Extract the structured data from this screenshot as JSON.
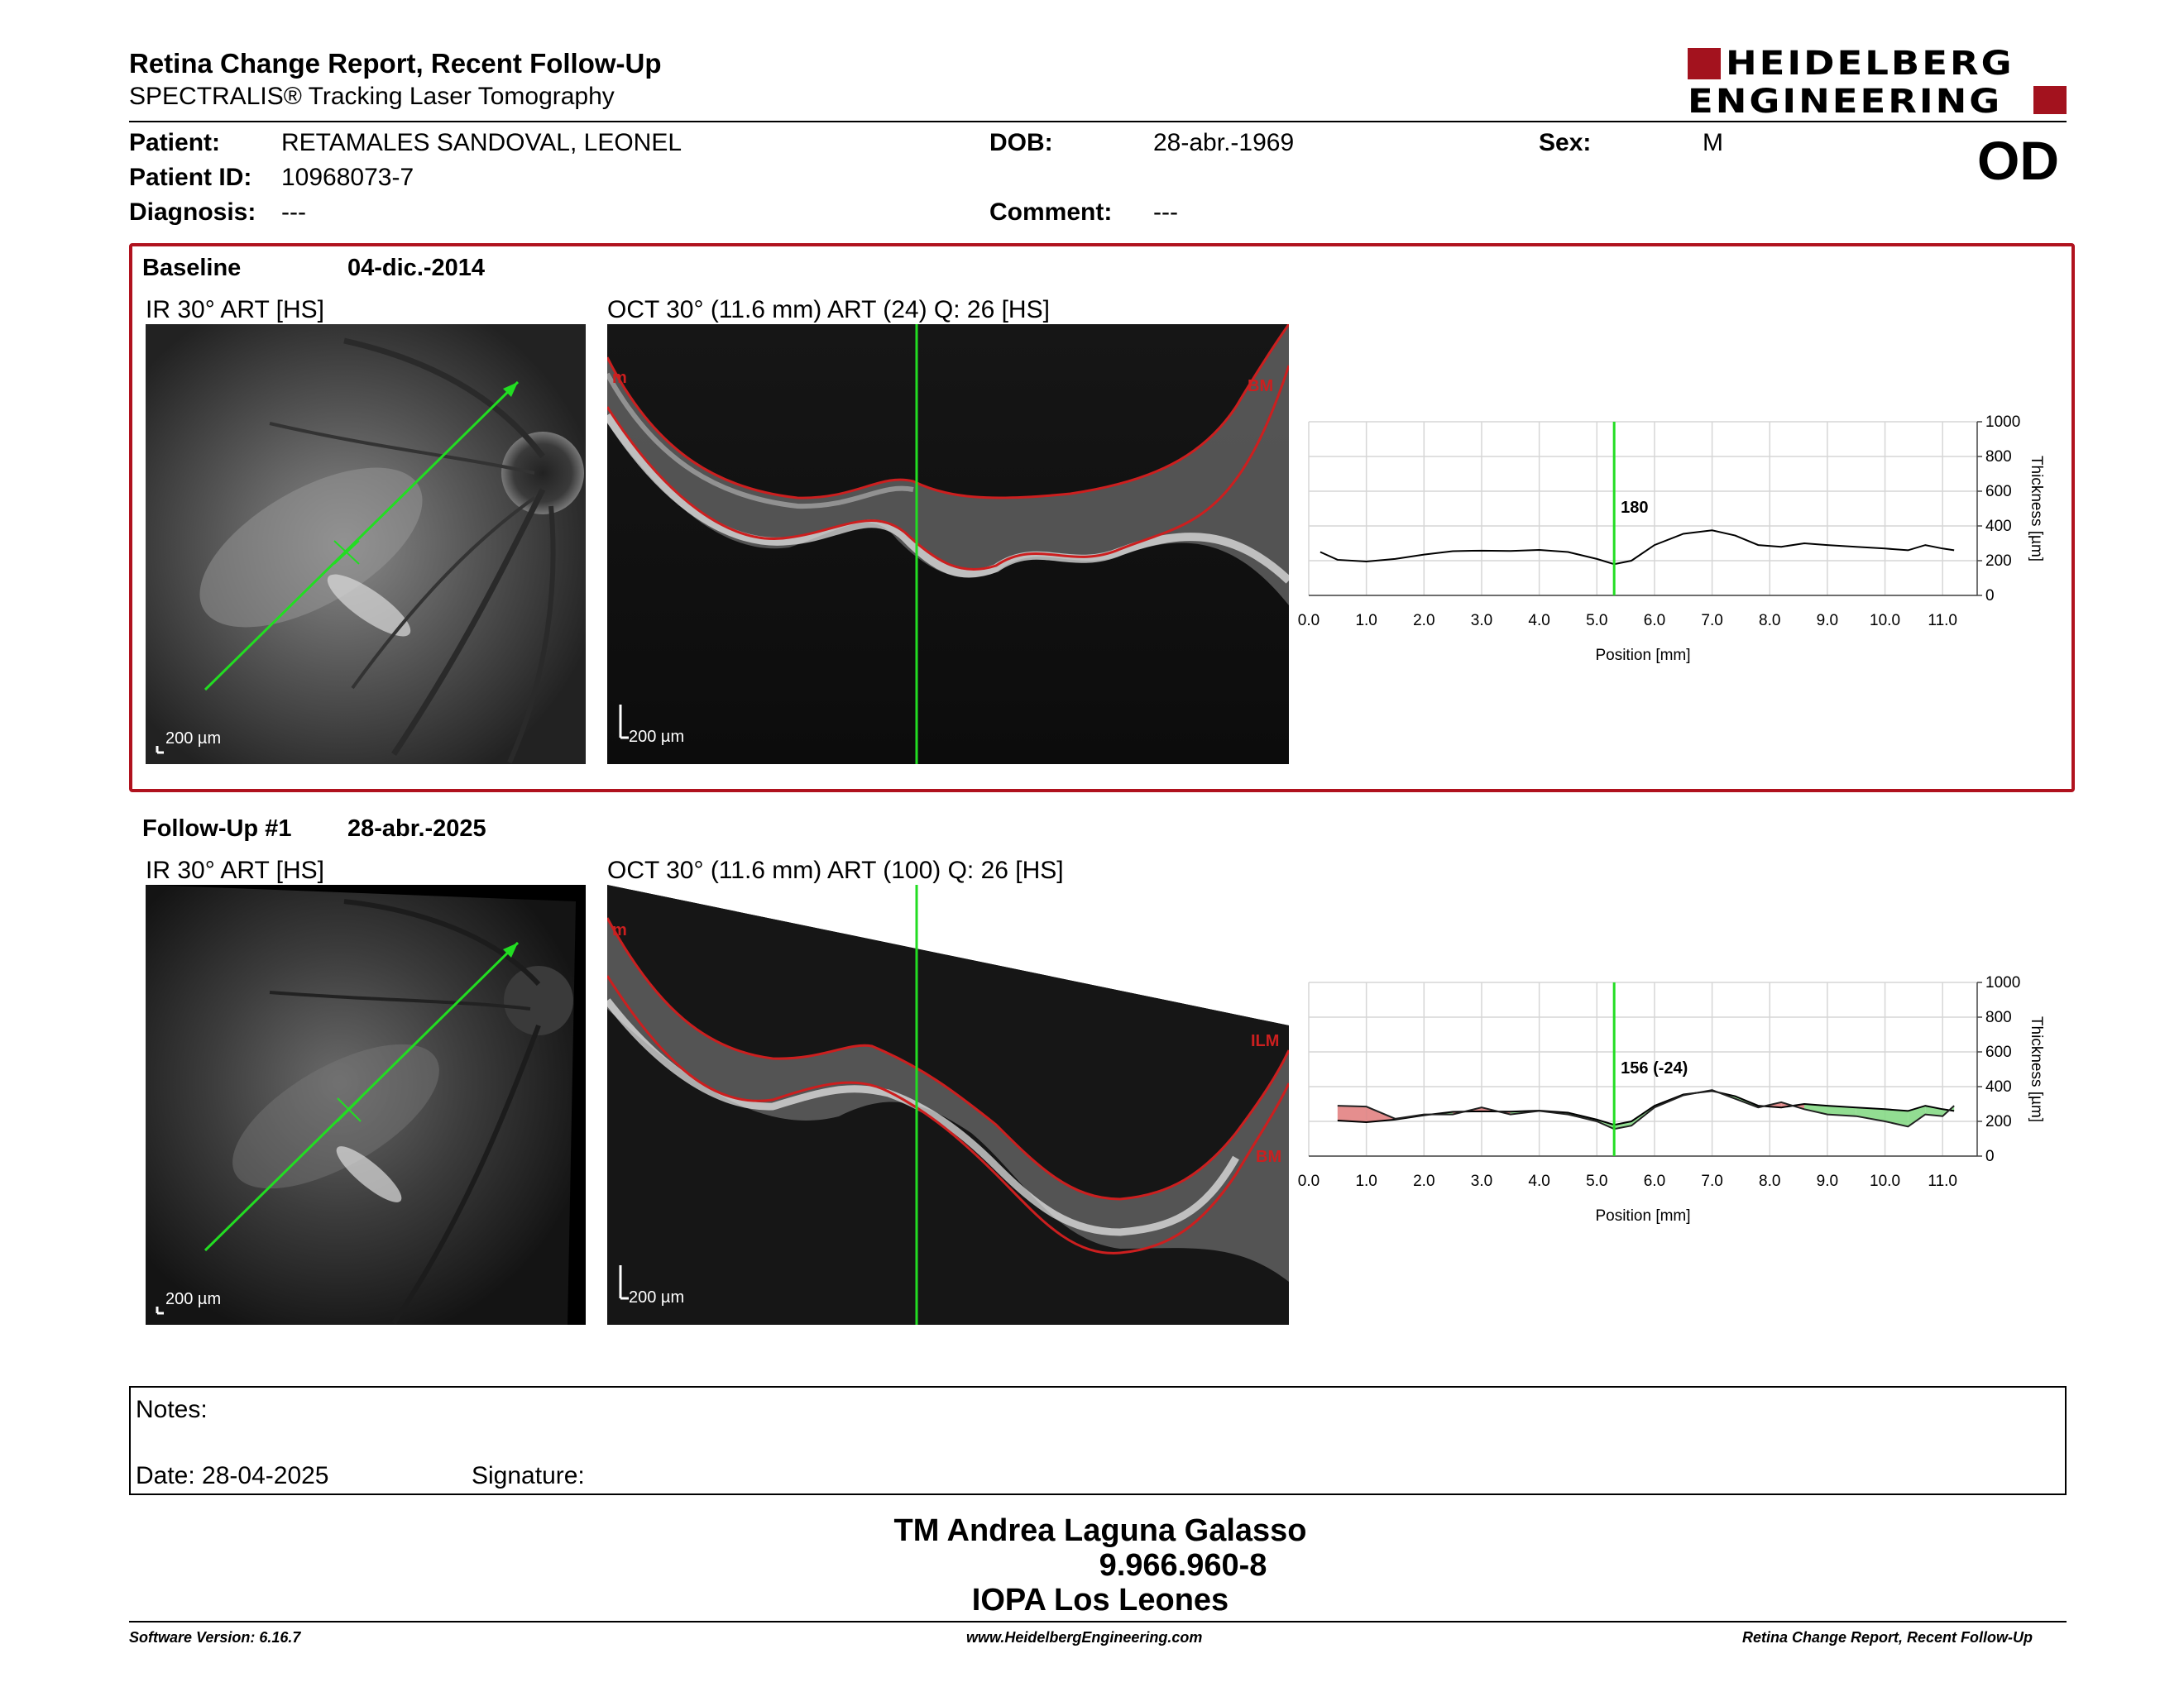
{
  "header": {
    "title": "Retina Change Report, Recent Follow-Up",
    "subtitle": "SPECTRALIS® Tracking Laser Tomography",
    "logo_line1": "HEIDELBERG",
    "logo_line2": "ENGINEERING",
    "eye": "OD"
  },
  "patient": {
    "patient_label": "Patient:",
    "patient_value": "RETAMALES SANDOVAL, LEONEL",
    "id_label": "Patient ID:",
    "id_value": "10968073-7",
    "diagnosis_label": "Diagnosis:",
    "diagnosis_value": "---",
    "dob_label": "DOB:",
    "dob_value": "28-abr.-1969",
    "comment_label": "Comment:",
    "comment_value": "---",
    "sex_label": "Sex:",
    "sex_value": "M"
  },
  "baseline": {
    "label": "Baseline",
    "date": "04-dic.-2014",
    "ir_caption": "IR 30° ART [HS]",
    "oct_caption": "OCT 30° (11.6 mm) ART (24) Q: 26 [HS]",
    "ir_scale": "200 µm",
    "oct_scale": "200 µm",
    "seg_label_left": "m",
    "seg_label_bm": "BM"
  },
  "followup": {
    "label": "Follow-Up #1",
    "date": "28-abr.-2025",
    "ir_caption": "IR 30° ART [HS]",
    "oct_caption": "OCT 30° (11.6 mm) ART (100) Q: 26 [HS]",
    "ir_scale": "200 µm",
    "oct_scale": "200 µm",
    "seg_label_left": "m",
    "seg_label_ilm": "ILM",
    "seg_label_bm": "BM"
  },
  "chart_data": [
    {
      "type": "line",
      "xlabel": "Position [mm]",
      "ylabel": "Thickness [µm]",
      "xlim": [
        0,
        11.6
      ],
      "ylim": [
        0,
        1000
      ],
      "xticks": [
        "0.0",
        "1.0",
        "2.0",
        "3.0",
        "4.0",
        "5.0",
        "6.0",
        "7.0",
        "8.0",
        "9.0",
        "10.0",
        "11.0"
      ],
      "yticks": [
        "0",
        "200",
        "400",
        "600",
        "800",
        "1000"
      ],
      "grid": true,
      "marker_x": 5.3,
      "marker_label": "180",
      "series": [
        {
          "x": [
            0.2,
            0.5,
            1.0,
            1.5,
            2.0,
            2.5,
            3.0,
            3.5,
            4.0,
            4.5,
            5.0,
            5.3,
            5.6,
            6.0,
            6.5,
            7.0,
            7.4,
            7.8,
            8.2,
            8.6,
            9.0,
            9.5,
            10.0,
            10.4,
            10.7,
            11.0,
            11.2
          ],
          "y": [
            250,
            205,
            195,
            210,
            235,
            255,
            258,
            256,
            262,
            250,
            210,
            180,
            200,
            290,
            355,
            375,
            345,
            290,
            280,
            300,
            290,
            280,
            270,
            260,
            290,
            270,
            260
          ]
        }
      ]
    },
    {
      "type": "line",
      "xlabel": "Position [mm]",
      "ylabel": "Thickness [µm]",
      "xlim": [
        0,
        11.6
      ],
      "ylim": [
        0,
        1000
      ],
      "xticks": [
        "0.0",
        "1.0",
        "2.0",
        "3.0",
        "4.0",
        "5.0",
        "6.0",
        "7.0",
        "8.0",
        "9.0",
        "10.0",
        "11.0"
      ],
      "yticks": [
        "0",
        "200",
        "400",
        "600",
        "800",
        "1000"
      ],
      "grid": true,
      "marker_x": 5.3,
      "marker_label": "156 (-24)",
      "colors": {
        "thicker": "#e07a7a",
        "thinner": "#7fd77f"
      },
      "series": [
        {
          "x": [
            0.5,
            1.0,
            1.5,
            2.0,
            2.5,
            3.0,
            3.5,
            4.0,
            4.5,
            5.0,
            5.3,
            5.6,
            6.0,
            6.5,
            7.0,
            7.4,
            7.8,
            8.2,
            8.6,
            9.0,
            9.5,
            10.0,
            10.4,
            10.7,
            11.0,
            11.2
          ],
          "y": [
            205,
            195,
            210,
            235,
            255,
            258,
            256,
            262,
            250,
            210,
            180,
            200,
            290,
            355,
            375,
            345,
            290,
            280,
            300,
            290,
            280,
            270,
            260,
            290,
            270,
            260
          ]
        },
        {
          "x": [
            0.5,
            1.0,
            1.5,
            2.0,
            2.5,
            3.0,
            3.5,
            4.0,
            4.5,
            5.0,
            5.3,
            5.6,
            6.0,
            6.5,
            7.0,
            7.4,
            7.8,
            8.2,
            8.6,
            9.0,
            9.5,
            10.0,
            10.4,
            10.7,
            11.0,
            11.2
          ],
          "y": [
            290,
            285,
            215,
            240,
            240,
            280,
            240,
            260,
            240,
            200,
            156,
            175,
            280,
            350,
            380,
            330,
            280,
            310,
            270,
            240,
            230,
            200,
            170,
            240,
            230,
            290
          ]
        }
      ]
    }
  ],
  "notes": {
    "notes_label": "Notes:",
    "date_label": "Date: 28-04-2025",
    "signature_label": "Signature:"
  },
  "signer": {
    "name": "TM Andrea Laguna Galasso",
    "id": "9.966.960-8",
    "place": "IOPA Los Leones"
  },
  "footer": {
    "software": "Software Version: 6.16.7",
    "website": "www.HeidelbergEngineering.com",
    "report": "Retina Change Report, Recent Follow-Up"
  }
}
